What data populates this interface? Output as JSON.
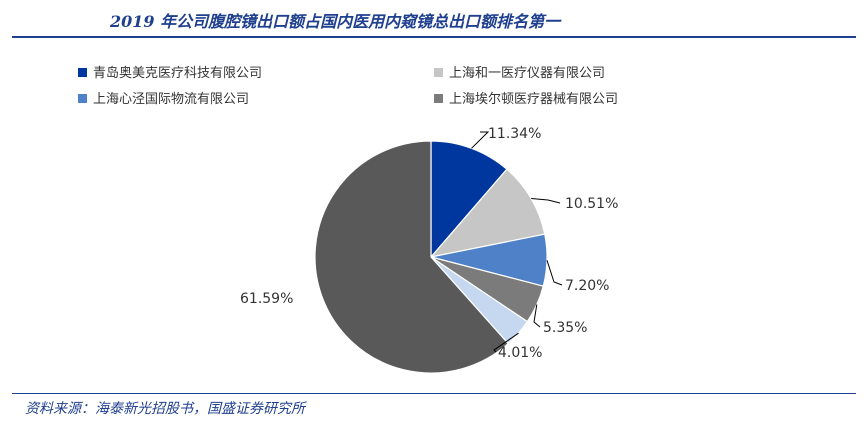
{
  "title": "2019 年公司腹腔镜出口额占国内医用内窥镜总出口额排名第一",
  "source": "资料来源：海泰新光招股书，国盛证券研究所",
  "chart_data": {
    "type": "pie",
    "slices": [
      {
        "label": "青岛奥美克医疗科技有限公司",
        "value": 11.34,
        "display": "11.34%",
        "color": "#00379e"
      },
      {
        "label": "上海和一医疗仪器有限公司",
        "value": 10.51,
        "display": "10.51%",
        "color": "#c6c6c6"
      },
      {
        "label": "上海心泾国际物流有限公司",
        "value": 7.2,
        "display": "7.20%",
        "color": "#4f81c9"
      },
      {
        "label": "上海埃尔顿医疗器械有限公司",
        "value": 5.35,
        "display": "5.35%",
        "color": "#7b7b7b"
      },
      {
        "label": "",
        "value": 4.01,
        "display": "4.01%",
        "color": "#c5d8f0"
      },
      {
        "label": "",
        "value": 61.59,
        "display": "61.59%",
        "color": "#595959"
      }
    ],
    "legend_placement": "top"
  }
}
